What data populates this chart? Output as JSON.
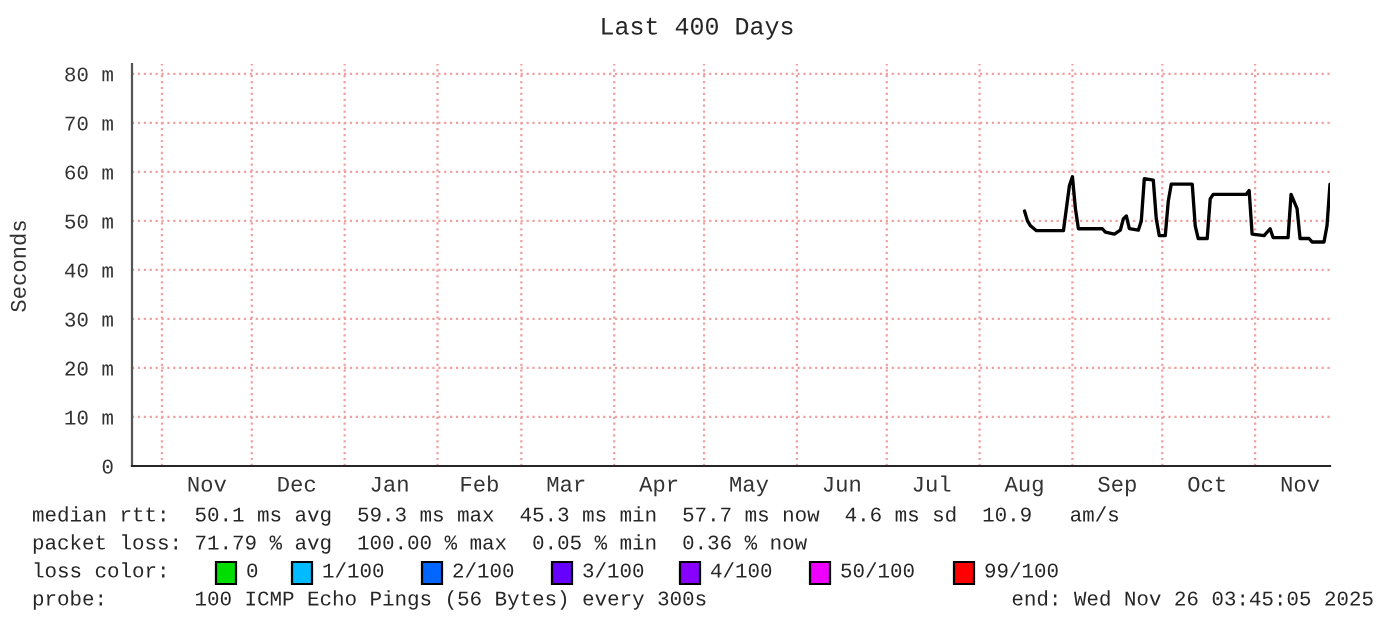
{
  "chart_data": {
    "type": "line",
    "title": "Last 400 Days",
    "ylabel": "Seconds",
    "x": [
      "2025-08-16",
      "2025-08-17",
      "2025-08-18",
      "2025-08-20",
      "2025-08-29",
      "2025-08-31",
      "2025-09-01",
      "2025-09-02",
      "2025-09-03",
      "2025-09-11",
      "2025-09-12",
      "2025-09-15",
      "2025-09-17",
      "2025-09-18",
      "2025-09-19",
      "2025-09-20",
      "2025-09-23",
      "2025-09-24",
      "2025-09-25",
      "2025-09-28",
      "2025-09-29",
      "2025-09-30",
      "2025-10-02",
      "2025-10-03",
      "2025-10-04",
      "2025-10-11",
      "2025-10-12",
      "2025-10-13",
      "2025-10-16",
      "2025-10-17",
      "2025-10-18",
      "2025-10-29",
      "2025-10-30",
      "2025-10-31",
      "2025-11-04",
      "2025-11-06",
      "2025-11-07",
      "2025-11-12",
      "2025-11-13",
      "2025-11-15",
      "2025-11-16",
      "2025-11-19",
      "2025-11-20",
      "2025-11-24",
      "2025-11-25",
      "2025-11-26"
    ],
    "series": [
      {
        "color": "#000000",
        "values": [
          52,
          50,
          49,
          48,
          48,
          57.2,
          59,
          52.5,
          48.4,
          48.4,
          47.7,
          47.3,
          48.1,
          50.4,
          51,
          48.4,
          48.1,
          50,
          58.6,
          58.3,
          50.4,
          47,
          47,
          54,
          57.5,
          57.5,
          49,
          46.4,
          46.4,
          54.5,
          55.4,
          55.4,
          56.2,
          47.3,
          47,
          48.4,
          46.6,
          46.6,
          55.4,
          52.5,
          46.4,
          46.4,
          45.7,
          45.7,
          49,
          57.5
        ]
      }
    ],
    "xlim": [
      "2024-10-22",
      "2025-11-26"
    ],
    "xticks": [
      {
        "value": "2024-11-01",
        "label": null
      },
      {
        "value": "2024-11-16",
        "label": "Nov"
      },
      {
        "value": "2024-12-01",
        "label": null
      },
      {
        "value": "2024-12-16",
        "label": "Dec"
      },
      {
        "value": "2025-01-01",
        "label": null
      },
      {
        "value": "2025-01-16",
        "label": "Jan"
      },
      {
        "value": "2025-02-01",
        "label": null
      },
      {
        "value": "2025-02-15",
        "label": "Feb"
      },
      {
        "value": "2025-03-01",
        "label": null
      },
      {
        "value": "2025-03-16",
        "label": "Mar"
      },
      {
        "value": "2025-04-01",
        "label": null
      },
      {
        "value": "2025-04-16",
        "label": "Apr"
      },
      {
        "value": "2025-05-01",
        "label": null
      },
      {
        "value": "2025-05-16",
        "label": "May"
      },
      {
        "value": "2025-06-01",
        "label": null
      },
      {
        "value": "2025-06-16",
        "label": "Jun"
      },
      {
        "value": "2025-07-01",
        "label": null
      },
      {
        "value": "2025-07-16",
        "label": "Jul"
      },
      {
        "value": "2025-08-01",
        "label": null
      },
      {
        "value": "2025-08-16",
        "label": "Aug"
      },
      {
        "value": "2025-09-01",
        "label": null
      },
      {
        "value": "2025-09-16",
        "label": "Sep"
      },
      {
        "value": "2025-10-01",
        "label": null
      },
      {
        "value": "2025-10-16",
        "label": "Oct"
      },
      {
        "value": "2025-11-01",
        "label": null
      },
      {
        "value": "2025-11-16",
        "label": "Nov"
      }
    ],
    "ylim": [
      0,
      82
    ],
    "yticks": [
      {
        "value": 0,
        "label": "0"
      },
      {
        "value": 10,
        "label": "10 m"
      },
      {
        "value": 20,
        "label": "20 m"
      },
      {
        "value": 30,
        "label": "30 m"
      },
      {
        "value": 40,
        "label": "40 m"
      },
      {
        "value": 50,
        "label": "50 m"
      },
      {
        "value": 60,
        "label": "60 m"
      },
      {
        "value": 70,
        "label": "70 m"
      },
      {
        "value": 80,
        "label": "80 m"
      }
    ],
    "grid": true,
    "line_style": "solid",
    "marker": "none",
    "annotations": [
      "median rtt:  50.1 ms avg  59.3 ms max  45.3 ms min  57.7 ms now  4.6 ms sd  10.9   am/s",
      "packet loss: 71.79 % avg  100.00 % max  0.05 % min  0.36 % now",
      "loss color:",
      "0",
      "1/100",
      "2/100",
      "3/100",
      "4/100",
      "50/100",
      "99/100",
      "probe:       100 ICMP Echo Pings (56 Bytes) every 300s",
      "end: Wed Nov 26 03:45:05 2025"
    ]
  }
}
